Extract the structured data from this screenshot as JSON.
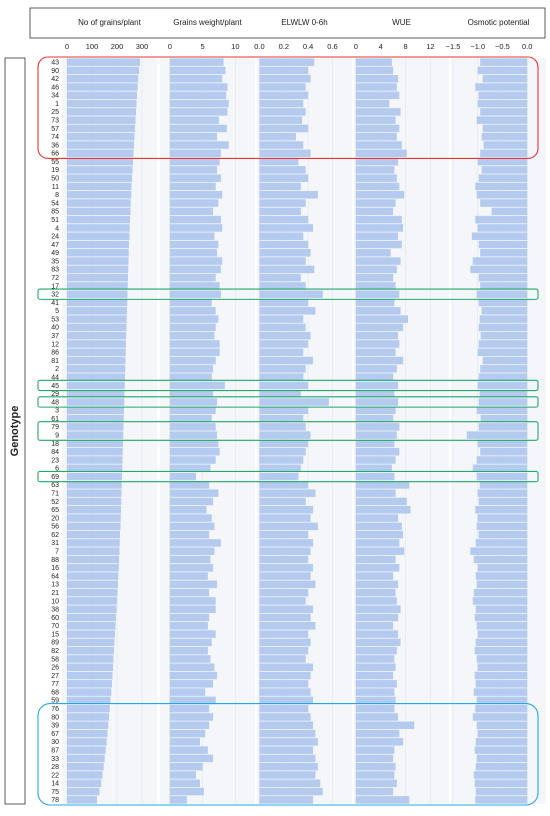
{
  "chart_data": {
    "type": "bar",
    "orientation": "horizontal",
    "y_label": "Genotype",
    "categories": [
      "43",
      "90",
      "42",
      "46",
      "34",
      "1",
      "25",
      "73",
      "57",
      "74",
      "36",
      "66",
      "55",
      "19",
      "50",
      "11",
      "8",
      "54",
      "85",
      "51",
      "4",
      "24",
      "47",
      "49",
      "35",
      "83",
      "72",
      "17",
      "32",
      "41",
      "5",
      "53",
      "40",
      "37",
      "12",
      "86",
      "81",
      "2",
      "44",
      "45",
      "29",
      "48",
      "3",
      "61",
      "79",
      "9",
      "18",
      "84",
      "23",
      "6",
      "69",
      "63",
      "71",
      "52",
      "65",
      "20",
      "56",
      "62",
      "31",
      "7",
      "88",
      "16",
      "64",
      "13",
      "21",
      "10",
      "38",
      "60",
      "70",
      "15",
      "89",
      "82",
      "58",
      "26",
      "27",
      "77",
      "68",
      "59",
      "76",
      "80",
      "39",
      "67",
      "30",
      "87",
      "33",
      "28",
      "22",
      "14",
      "75",
      "78"
    ],
    "panels": [
      {
        "title": "No of grains/plant",
        "color": "#a8c3ec",
        "xlim": [
          -20,
          360
        ],
        "xticks": [
          0,
          100,
          200,
          300
        ],
        "values": [
          292,
          288,
          285,
          283,
          280,
          278,
          276,
          274,
          272,
          270,
          268,
          266,
          264,
          262,
          260,
          258,
          257,
          255,
          254,
          252,
          251,
          250,
          248,
          247,
          246,
          245,
          244,
          243,
          242,
          241,
          240,
          239,
          238,
          237,
          236,
          235,
          234,
          233,
          232,
          231,
          230,
          229,
          228,
          227,
          226,
          225,
          224,
          223,
          222,
          221,
          220,
          219,
          218,
          217,
          216,
          215,
          214,
          212,
          211,
          210,
          208,
          207,
          205,
          204,
          202,
          200,
          198,
          196,
          194,
          192,
          190,
          188,
          186,
          184,
          182,
          180,
          177,
          174,
          171,
          168,
          165,
          162,
          159,
          155,
          151,
          147,
          142,
          137,
          130,
          120
        ]
      },
      {
        "title": "Grains weight/plant",
        "color": "#a8c3ec",
        "xlim": [
          -1.5,
          13
        ],
        "xticks": [
          0,
          5,
          10
        ],
        "values": [
          8.2,
          8.5,
          8.0,
          8.8,
          8.6,
          9.0,
          8.8,
          7.5,
          8.7,
          7.2,
          9.0,
          7.8,
          7.6,
          7.2,
          7.8,
          7.0,
          8.0,
          7.4,
          6.6,
          7.8,
          8.0,
          6.8,
          7.4,
          7.2,
          8.0,
          7.8,
          7.0,
          7.6,
          7.8,
          6.4,
          7.0,
          7.4,
          7.0,
          6.8,
          7.6,
          7.6,
          7.0,
          6.6,
          6.4,
          8.4,
          6.6,
          7.2,
          7.0,
          6.4,
          7.0,
          7.2,
          7.4,
          7.6,
          7.0,
          6.2,
          4.0,
          6.0,
          7.4,
          6.6,
          5.6,
          6.4,
          6.8,
          6.0,
          7.8,
          6.8,
          6.2,
          6.6,
          5.8,
          7.2,
          6.0,
          7.0,
          7.0,
          6.0,
          5.8,
          7.0,
          6.4,
          5.8,
          6.2,
          6.8,
          7.2,
          6.6,
          5.4,
          7.0,
          6.0,
          6.6,
          6.0,
          5.4,
          4.6,
          5.8,
          6.6,
          5.0,
          4.0,
          4.6,
          5.2,
          2.6
        ]
      },
      {
        "title": "ELWLW 0-6h",
        "color": "#a8c3ec",
        "xlim": [
          -0.02,
          0.76
        ],
        "xticks": [
          {
            "value": 0,
            "label": "0.0"
          },
          0.2,
          0.4,
          0.6
        ],
        "values": [
          0.45,
          0.4,
          0.42,
          0.38,
          0.4,
          0.36,
          0.38,
          0.35,
          0.4,
          0.3,
          0.36,
          0.42,
          0.32,
          0.38,
          0.4,
          0.34,
          0.48,
          0.38,
          0.34,
          0.4,
          0.44,
          0.36,
          0.4,
          0.42,
          0.38,
          0.45,
          0.34,
          0.38,
          0.52,
          0.4,
          0.46,
          0.36,
          0.38,
          0.42,
          0.4,
          0.36,
          0.44,
          0.38,
          0.36,
          0.4,
          0.34,
          0.57,
          0.4,
          0.36,
          0.38,
          0.42,
          0.4,
          0.38,
          0.36,
          0.34,
          0.32,
          0.4,
          0.46,
          0.38,
          0.44,
          0.42,
          0.48,
          0.4,
          0.44,
          0.42,
          0.4,
          0.44,
          0.42,
          0.46,
          0.4,
          0.38,
          0.44,
          0.42,
          0.46,
          0.4,
          0.42,
          0.4,
          0.38,
          0.44,
          0.42,
          0.4,
          0.42,
          0.44,
          0.4,
          0.42,
          0.44,
          0.46,
          0.48,
          0.44,
          0.46,
          0.48,
          0.46,
          0.5,
          0.52,
          0.44
        ]
      },
      {
        "title": "WUE",
        "color": "#a8c3ec",
        "xlim": [
          -0.3,
          15
        ],
        "xticks": [
          0,
          4,
          8,
          12
        ],
        "values": [
          5.8,
          6.0,
          6.8,
          6.6,
          7.0,
          5.4,
          7.2,
          6.4,
          7.0,
          6.6,
          7.4,
          8.2,
          6.8,
          6.2,
          6.6,
          7.0,
          7.8,
          6.4,
          6.0,
          7.4,
          7.6,
          6.8,
          7.4,
          5.6,
          7.2,
          6.6,
          6.0,
          6.4,
          7.0,
          6.2,
          7.2,
          8.4,
          7.6,
          6.8,
          7.0,
          6.4,
          7.6,
          6.6,
          6.0,
          6.8,
          6.2,
          6.8,
          6.4,
          6.0,
          7.0,
          6.6,
          6.2,
          7.0,
          6.4,
          5.8,
          6.2,
          8.6,
          6.4,
          8.2,
          8.8,
          6.8,
          7.4,
          7.6,
          7.0,
          7.8,
          6.4,
          7.0,
          6.0,
          6.8,
          6.4,
          6.6,
          7.2,
          6.8,
          6.0,
          6.8,
          7.2,
          6.6,
          6.2,
          6.4,
          6.0,
          6.6,
          6.2,
          6.4,
          6.2,
          6.8,
          9.4,
          7.0,
          7.6,
          6.2,
          6.0,
          6.4,
          6.2,
          6.6,
          6.0,
          8.6
        ]
      },
      {
        "title": "Osmotic potential",
        "color": "#a8c3ec",
        "xlim": [
          -1.54,
          0.38
        ],
        "xticks": [
          {
            "value": -1.5,
            "label": "−1.5"
          },
          {
            "value": -1.0,
            "label": "−1.0"
          },
          {
            "value": -0.5,
            "label": "−0.5"
          },
          {
            "value": 0,
            "label": "0.0"
          }
        ],
        "values": [
          -0.95,
          -1.0,
          -0.9,
          -1.05,
          -0.98,
          -1.0,
          -0.95,
          -1.02,
          -0.9,
          -0.92,
          -0.88,
          -0.95,
          -1.0,
          -0.92,
          -0.98,
          -1.05,
          -1.02,
          -0.95,
          -0.72,
          -1.05,
          -1.0,
          -1.12,
          -0.98,
          -0.95,
          -1.1,
          -1.15,
          -0.98,
          -0.95,
          -1.02,
          -0.98,
          -0.92,
          -0.96,
          -0.98,
          -0.94,
          -0.98,
          -1.0,
          -0.9,
          -0.95,
          -0.98,
          -1.0,
          -0.96,
          -0.98,
          -1.02,
          -0.94,
          -0.98,
          -1.22,
          -1.0,
          -0.95,
          -1.02,
          -1.1,
          -1.02,
          -0.96,
          -1.0,
          -0.98,
          -1.05,
          -1.0,
          -1.02,
          -0.98,
          -1.04,
          -1.15,
          -1.08,
          -1.0,
          -1.04,
          -1.02,
          -1.08,
          -1.1,
          -1.04,
          -1.06,
          -1.02,
          -1.0,
          -1.04,
          -1.06,
          -1.02,
          -1.0,
          -1.06,
          -1.04,
          -1.08,
          -1.02,
          -1.05,
          -1.1,
          -1.02,
          -1.0,
          -1.04,
          -1.06,
          -1.02,
          -1.04,
          -1.08,
          -1.06,
          -1.04,
          -1.05
        ]
      }
    ]
  }
}
